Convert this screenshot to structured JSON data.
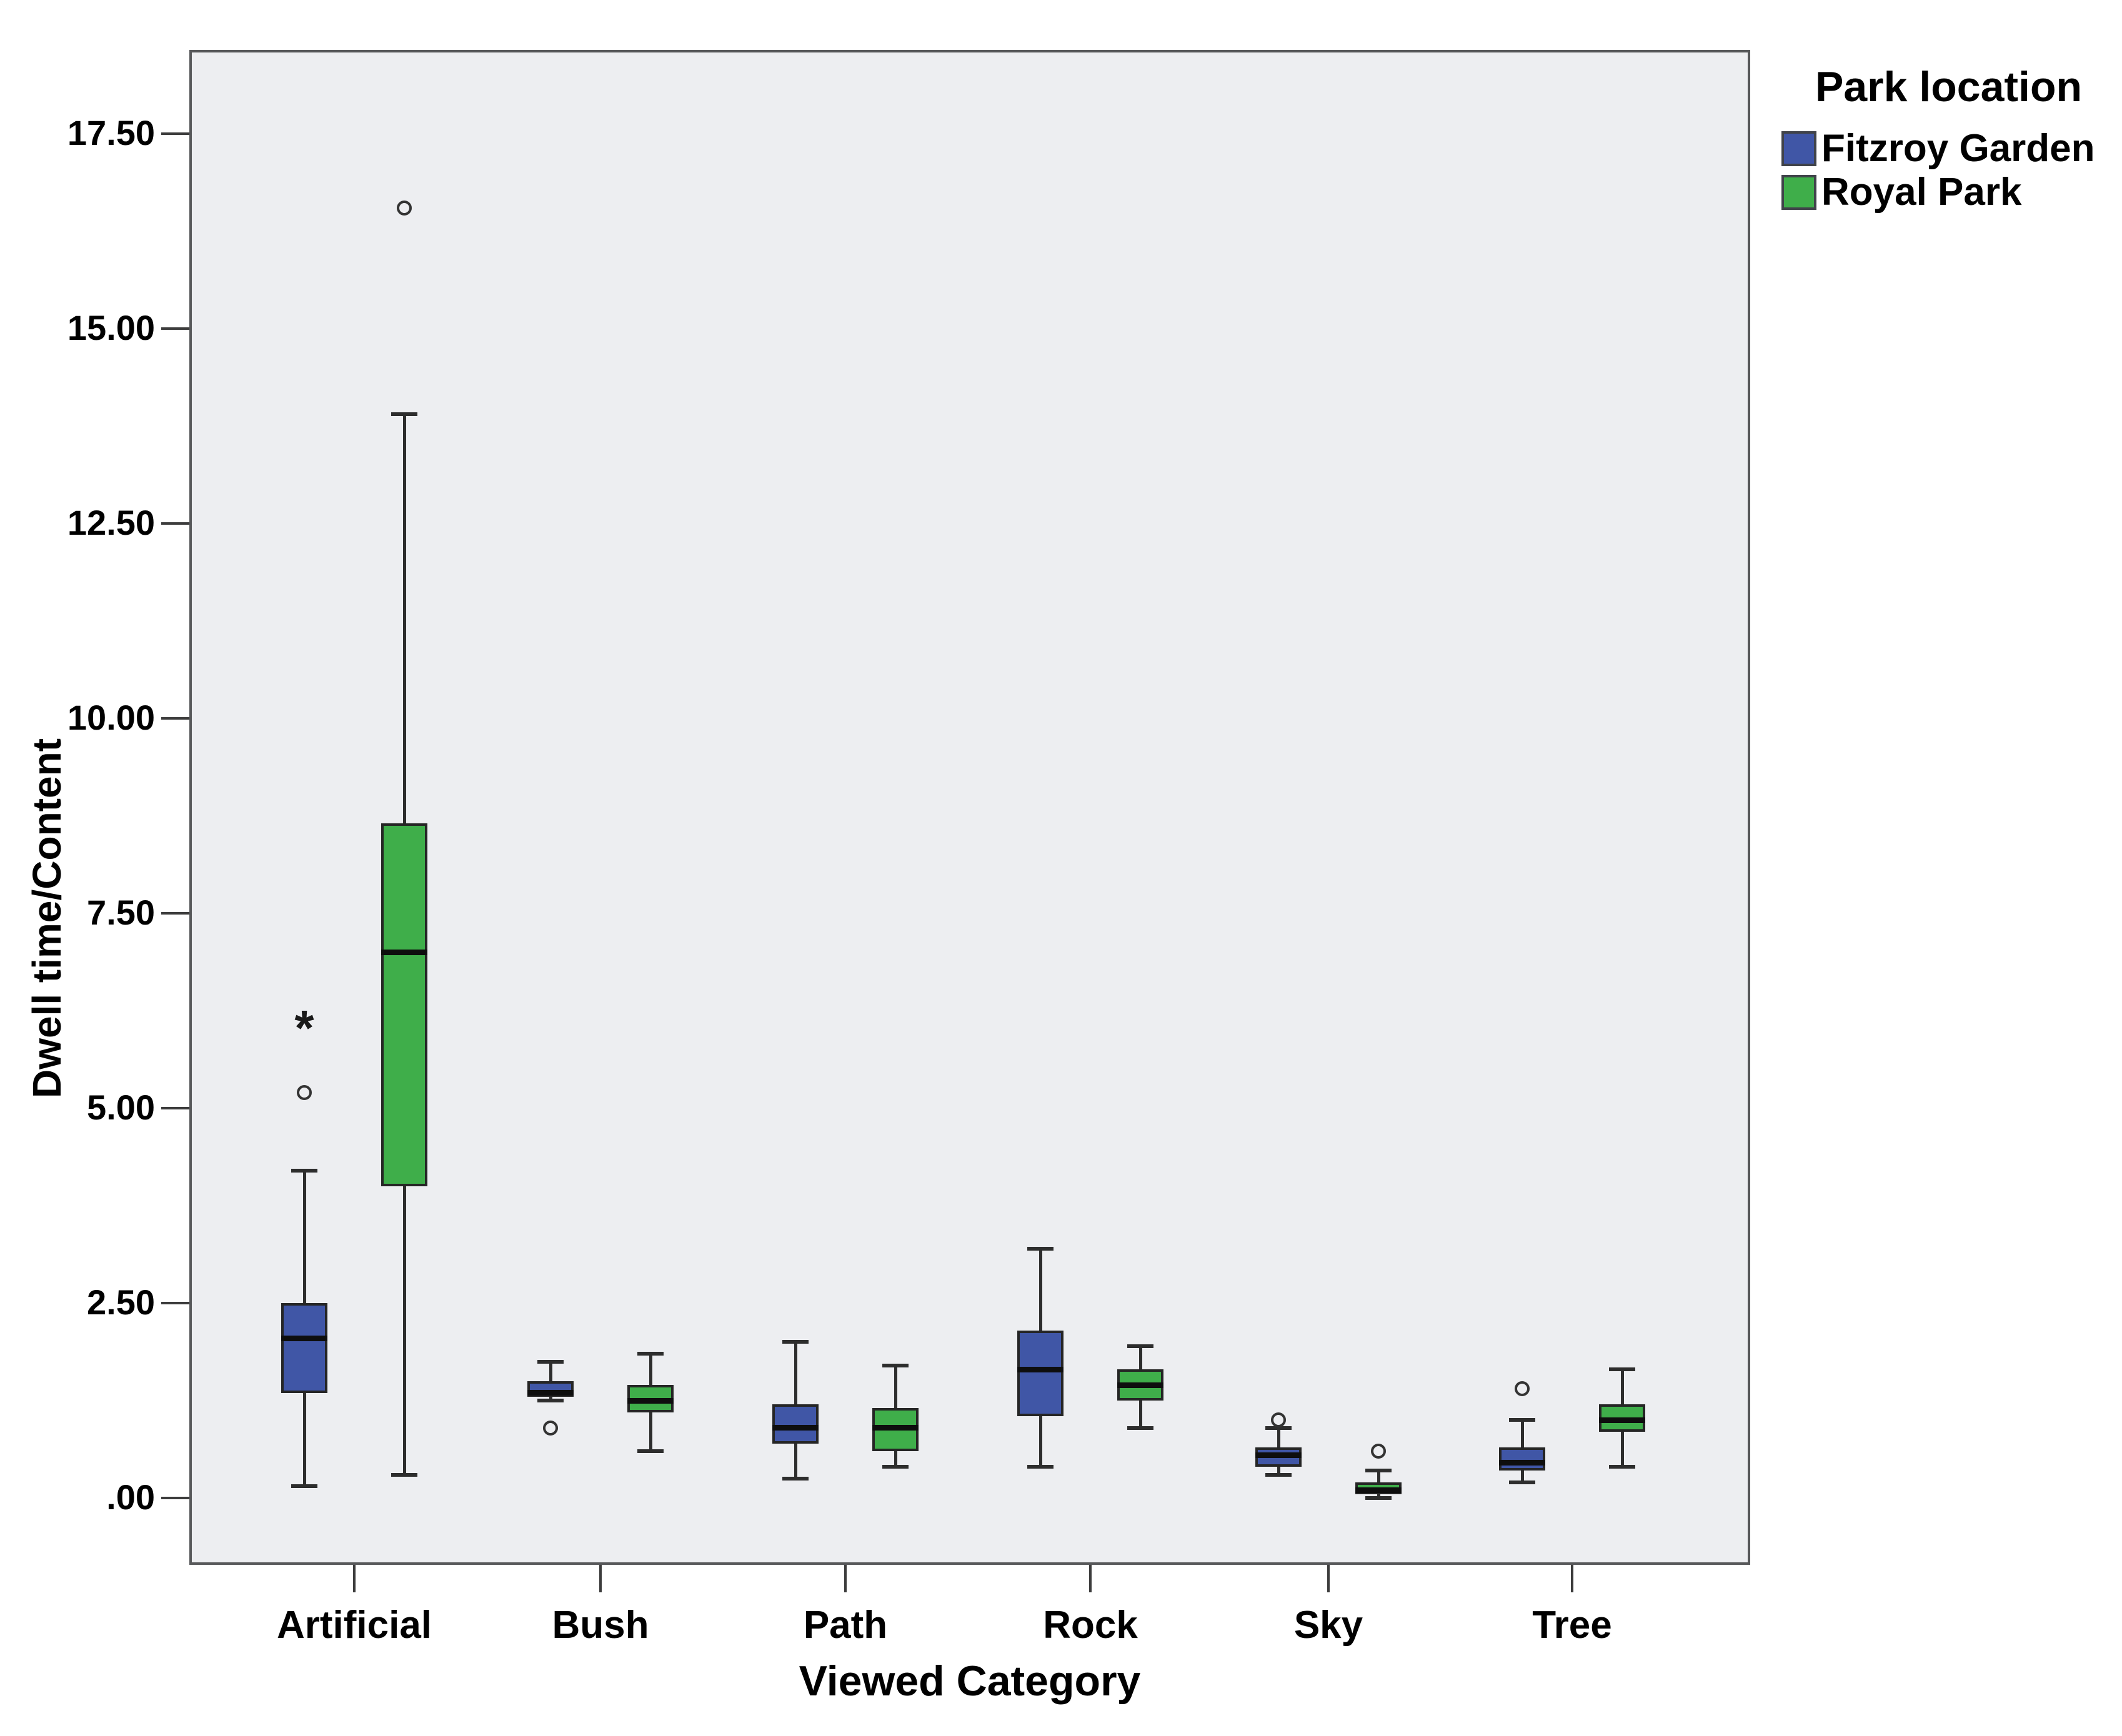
{
  "figure": {
    "x_axis_title": "Viewed Category",
    "y_axis_title": "Dwell time/Content"
  },
  "legend": {
    "title": "Park location",
    "entries": [
      {
        "label": "Fitzroy Garden",
        "color": "#4056a6"
      },
      {
        "label": "Royal Park",
        "color": "#3fae4a"
      }
    ]
  },
  "chart_data": {
    "type": "boxplot",
    "title": "",
    "xlabel": "Viewed Category",
    "ylabel": "Dwell time/Content",
    "grid": false,
    "legend_position": "top-right",
    "plot_background": "#edeef1",
    "categories": [
      "Artificial",
      "Bush",
      "Path",
      "Rock",
      "Sky",
      "Tree"
    ],
    "y_ticks": {
      "labels": [
        "17.50",
        "15.00",
        "12.50",
        "10.00",
        "7.50",
        "5.00",
        "2.50",
        ".00"
      ],
      "values": [
        17.5,
        15.0,
        12.5,
        10.0,
        7.5,
        5.0,
        2.5,
        0.0
      ]
    },
    "ylim": [
      -0.85,
      18.6
    ],
    "series": [
      {
        "name": "Fitzroy Garden",
        "color": "#4056a6",
        "boxes": [
          {
            "category": "Artificial",
            "whisker_low": 0.15,
            "q1": 1.35,
            "median": 2.05,
            "q3": 2.5,
            "whisker_high": 4.2,
            "outliers": [
              {
                "value": 5.2,
                "marker": "circle"
              },
              {
                "value": 6.1,
                "marker": "star"
              }
            ]
          },
          {
            "category": "Bush",
            "whisker_low": 1.25,
            "q1": 1.3,
            "median": 1.35,
            "q3": 1.5,
            "whisker_high": 1.75,
            "outliers": [
              {
                "value": 0.9,
                "marker": "circle"
              }
            ]
          },
          {
            "category": "Path",
            "whisker_low": 0.25,
            "q1": 0.7,
            "median": 0.9,
            "q3": 1.2,
            "whisker_high": 2.0,
            "outliers": []
          },
          {
            "category": "Rock",
            "whisker_low": 0.4,
            "q1": 1.05,
            "median": 1.65,
            "q3": 2.15,
            "whisker_high": 3.2,
            "outliers": []
          },
          {
            "category": "Sky",
            "whisker_low": 0.3,
            "q1": 0.4,
            "median": 0.55,
            "q3": 0.65,
            "whisker_high": 0.9,
            "outliers": [
              {
                "value": 1.0,
                "marker": "circle"
              }
            ]
          },
          {
            "category": "Tree",
            "whisker_low": 0.2,
            "q1": 0.35,
            "median": 0.45,
            "q3": 0.65,
            "whisker_high": 1.0,
            "outliers": [
              {
                "value": 1.4,
                "marker": "circle"
              }
            ]
          }
        ]
      },
      {
        "name": "Royal Park",
        "color": "#3fae4a",
        "boxes": [
          {
            "category": "Artificial",
            "whisker_low": 0.3,
            "q1": 4.0,
            "median": 7.0,
            "q3": 8.65,
            "whisker_high": 13.9,
            "outliers": [
              {
                "value": 16.55,
                "marker": "circle"
              }
            ]
          },
          {
            "category": "Bush",
            "whisker_low": 0.6,
            "q1": 1.1,
            "median": 1.25,
            "q3": 1.45,
            "whisker_high": 1.85,
            "outliers": []
          },
          {
            "category": "Path",
            "whisker_low": 0.4,
            "q1": 0.6,
            "median": 0.9,
            "q3": 1.15,
            "whisker_high": 1.7,
            "outliers": []
          },
          {
            "category": "Rock",
            "whisker_low": 0.9,
            "q1": 1.25,
            "median": 1.45,
            "q3": 1.65,
            "whisker_high": 1.95,
            "outliers": []
          },
          {
            "category": "Sky",
            "whisker_low": 0.0,
            "q1": 0.05,
            "median": 0.1,
            "q3": 0.2,
            "whisker_high": 0.35,
            "outliers": [
              {
                "value": 0.6,
                "marker": "circle"
              }
            ]
          },
          {
            "category": "Tree",
            "whisker_low": 0.4,
            "q1": 0.85,
            "median": 1.0,
            "q3": 1.2,
            "whisker_high": 1.65,
            "outliers": []
          }
        ]
      }
    ]
  }
}
